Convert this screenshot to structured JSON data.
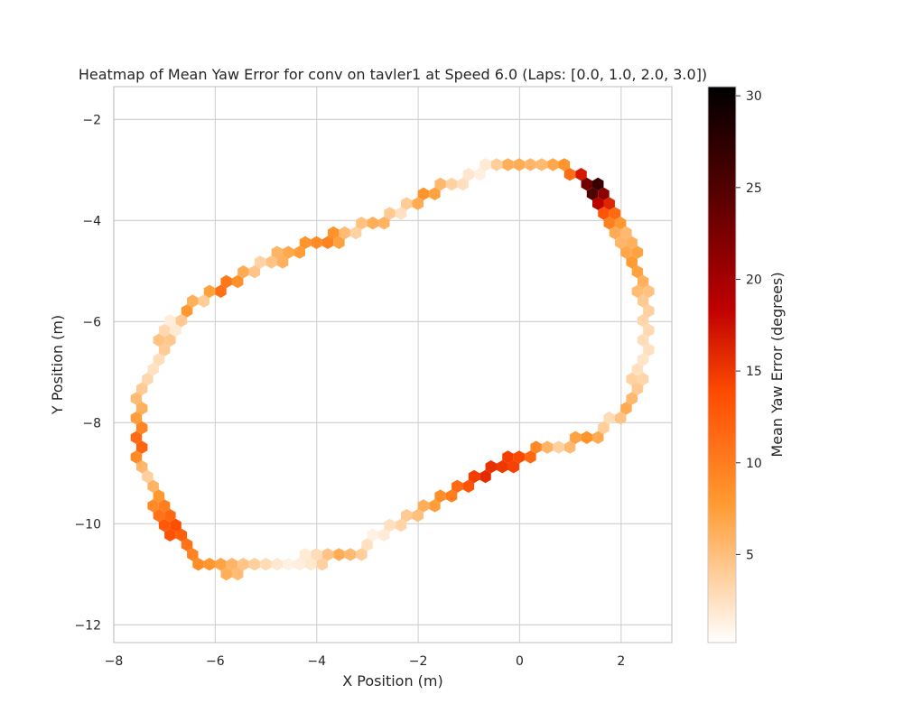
{
  "chart_data": {
    "type": "heatmap",
    "subtype": "hexbin",
    "title": "Heatmap of Mean Yaw Error for conv on tavler1 at Speed 6.0 (Laps: [0.0, 1.0, 2.0, 3.0])",
    "xlabel": "X Position (m)",
    "ylabel": "Y Position (m)",
    "xlim": [
      -8,
      3
    ],
    "ylim": [
      -12.35,
      -1.35
    ],
    "x_ticks": [
      -8,
      -6,
      -4,
      -2,
      0,
      2
    ],
    "y_ticks": [
      -12,
      -10,
      -8,
      -6,
      -4,
      -2
    ],
    "x_tick_labels": [
      "−8",
      "−6",
      "−4",
      "−2",
      "0",
      "2"
    ],
    "y_tick_labels": [
      "−12",
      "−10",
      "−8",
      "−6",
      "−4",
      "−2"
    ],
    "grid": true,
    "colormap": "gist_heat_r",
    "colorbar": {
      "label": "Mean Yaw Error (degrees)",
      "min": 0.2,
      "max": 30.5,
      "ticks": [
        5,
        10,
        15,
        20,
        25,
        30
      ],
      "tick_labels": [
        "5",
        "10",
        "15",
        "20",
        "25",
        "30"
      ]
    },
    "track_loop": [
      [
        0.4,
        -2.85
      ],
      [
        1.0,
        -3.0
      ],
      [
        1.5,
        -3.4
      ],
      [
        1.8,
        -3.9
      ],
      [
        2.1,
        -4.4
      ],
      [
        2.35,
        -5.1
      ],
      [
        2.5,
        -5.9
      ],
      [
        2.4,
        -6.8
      ],
      [
        2.2,
        -7.5
      ],
      [
        1.9,
        -7.9
      ],
      [
        1.5,
        -8.2
      ],
      [
        0.9,
        -8.45
      ],
      [
        0.2,
        -8.6
      ],
      [
        -0.6,
        -9.0
      ],
      [
        -1.3,
        -9.35
      ],
      [
        -2.0,
        -9.75
      ],
      [
        -2.6,
        -10.1
      ],
      [
        -3.1,
        -10.5
      ],
      [
        -3.6,
        -10.65
      ],
      [
        -4.2,
        -10.7
      ],
      [
        -4.7,
        -10.8
      ],
      [
        -5.2,
        -10.85
      ],
      [
        -5.8,
        -10.9
      ],
      [
        -6.3,
        -10.7
      ],
      [
        -6.7,
        -10.3
      ],
      [
        -7.0,
        -9.8
      ],
      [
        -7.3,
        -9.2
      ],
      [
        -7.5,
        -8.6
      ],
      [
        -7.55,
        -8.0
      ],
      [
        -7.45,
        -7.4
      ],
      [
        -7.2,
        -6.9
      ],
      [
        -7.0,
        -6.4
      ],
      [
        -6.8,
        -6.05
      ],
      [
        -6.5,
        -5.75
      ],
      [
        -6.2,
        -5.5
      ],
      [
        -5.8,
        -5.3
      ],
      [
        -5.4,
        -5.1
      ],
      [
        -5.0,
        -4.8
      ],
      [
        -4.5,
        -4.65
      ],
      [
        -4.0,
        -4.45
      ],
      [
        -3.5,
        -4.3
      ],
      [
        -3.0,
        -4.1
      ],
      [
        -2.5,
        -3.85
      ],
      [
        -2.0,
        -3.55
      ],
      [
        -1.4,
        -3.3
      ],
      [
        -0.8,
        -3.0
      ],
      [
        -0.2,
        -2.85
      ],
      [
        0.4,
        -2.85
      ]
    ],
    "error_profile": [
      [
        0.0,
        5
      ],
      [
        0.02,
        9
      ],
      [
        0.04,
        27
      ],
      [
        0.06,
        13
      ],
      [
        0.08,
        5
      ],
      [
        0.1,
        8
      ],
      [
        0.12,
        4
      ],
      [
        0.15,
        2
      ],
      [
        0.18,
        7
      ],
      [
        0.2,
        2
      ],
      [
        0.22,
        9
      ],
      [
        0.24,
        3
      ],
      [
        0.26,
        14
      ],
      [
        0.28,
        16
      ],
      [
        0.3,
        10
      ],
      [
        0.32,
        5
      ],
      [
        0.35,
        1
      ],
      [
        0.38,
        7
      ],
      [
        0.4,
        2
      ],
      [
        0.42,
        1
      ],
      [
        0.45,
        4
      ],
      [
        0.48,
        8
      ],
      [
        0.5,
        10
      ],
      [
        0.52,
        14
      ],
      [
        0.54,
        9
      ],
      [
        0.56,
        3
      ],
      [
        0.58,
        13
      ],
      [
        0.6,
        7
      ],
      [
        0.62,
        4
      ],
      [
        0.64,
        2
      ],
      [
        0.66,
        5
      ],
      [
        0.68,
        1
      ],
      [
        0.7,
        9
      ],
      [
        0.72,
        3
      ],
      [
        0.74,
        12
      ],
      [
        0.76,
        8
      ],
      [
        0.78,
        3
      ],
      [
        0.8,
        6
      ],
      [
        0.82,
        8
      ],
      [
        0.84,
        10
      ],
      [
        0.86,
        3
      ],
      [
        0.88,
        7
      ],
      [
        0.9,
        2
      ],
      [
        0.92,
        9
      ],
      [
        0.94,
        3
      ],
      [
        0.96,
        1
      ],
      [
        0.98,
        7
      ],
      [
        1.0,
        5
      ]
    ]
  }
}
